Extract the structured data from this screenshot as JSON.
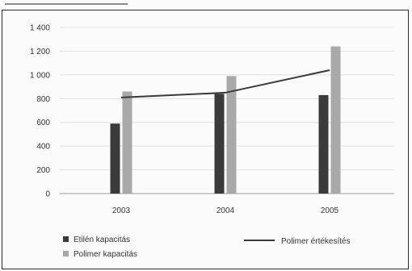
{
  "chart_data": {
    "type": "bar",
    "categories": [
      "2003",
      "2004",
      "2005"
    ],
    "series": [
      {
        "name": "Etilén kapacitás",
        "kind": "bar",
        "color": "#3a3a3a",
        "values": [
          590,
          840,
          830
        ]
      },
      {
        "name": "Polimer kapacitás",
        "kind": "bar",
        "color": "#a9a9a9",
        "values": [
          860,
          990,
          1240
        ]
      },
      {
        "name": "Polimer értékesítés",
        "kind": "line",
        "color": "#3a3a3a",
        "values": [
          810,
          850,
          1040
        ]
      }
    ],
    "ylim": [
      0,
      1400
    ],
    "yticks": [
      0,
      200,
      400,
      600,
      800,
      1000,
      1200,
      1400
    ],
    "ytick_labels": [
      "0",
      "200",
      "400",
      "600",
      "800",
      "1 000",
      "1 200",
      "1 400"
    ],
    "grid": true,
    "legend": "bottom"
  }
}
